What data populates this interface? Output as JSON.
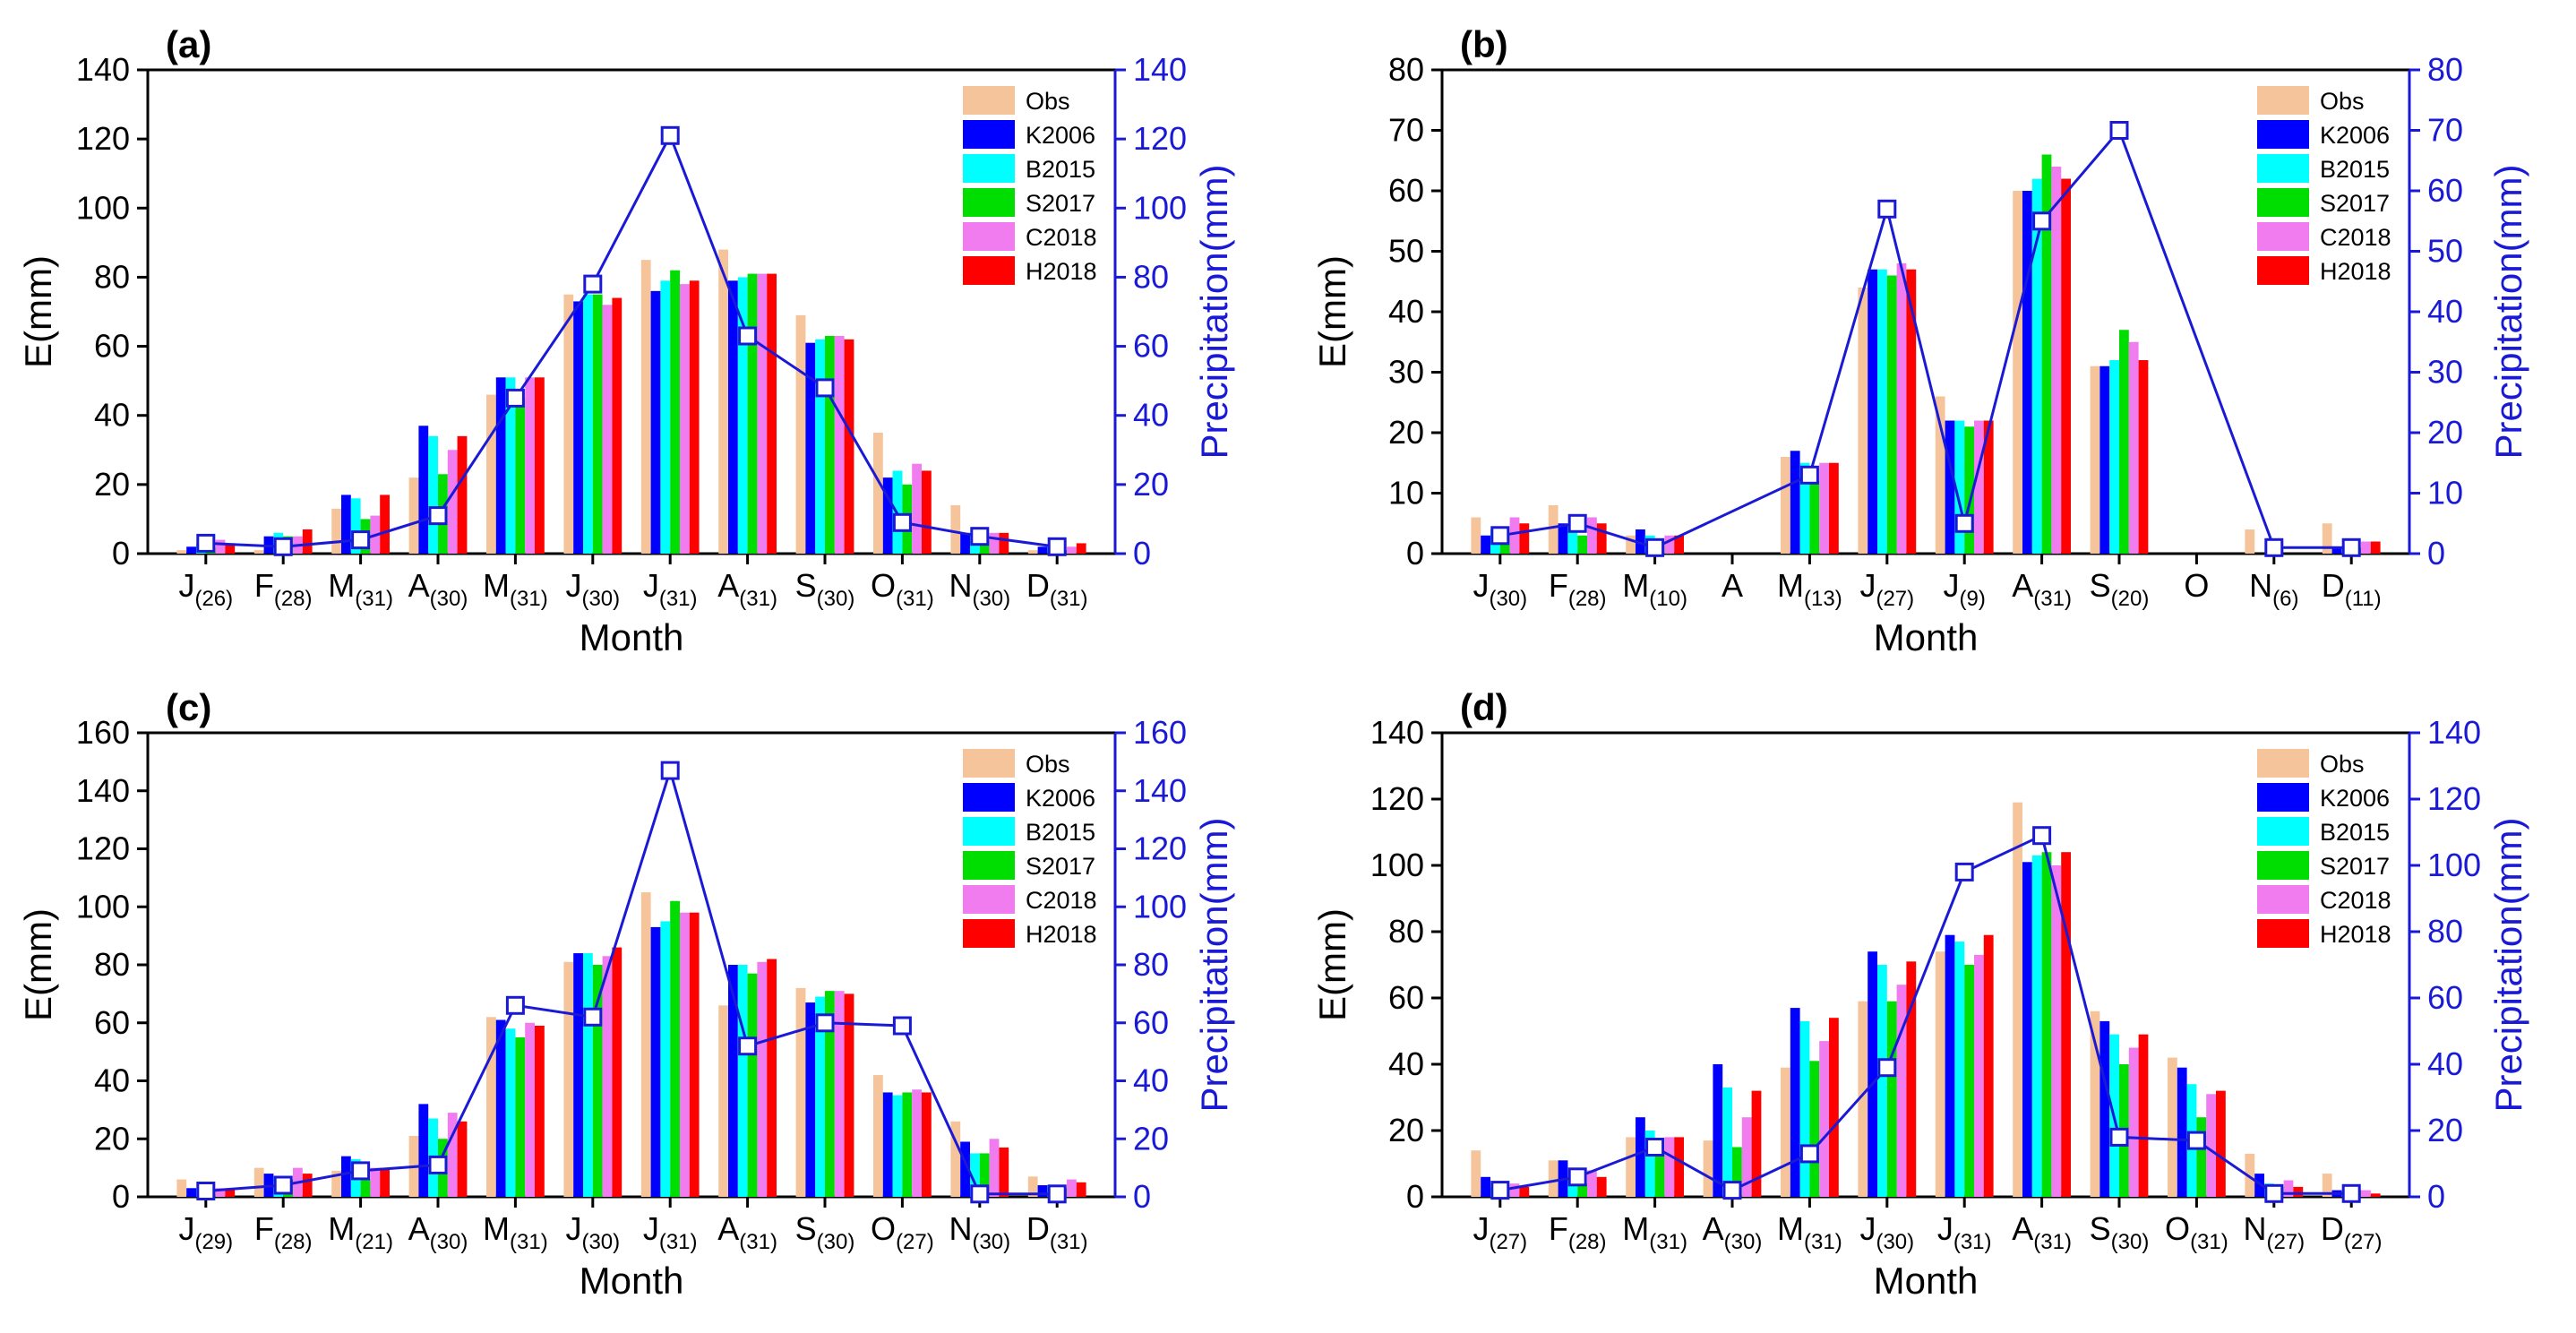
{
  "colors": {
    "Obs": "#f6c49b",
    "K2006": "#0000ff",
    "B2015": "#00ffff",
    "S2017": "#00dd00",
    "C2018": "#f07cf0",
    "H2018": "#ff0000",
    "precip": "#1a1ad6"
  },
  "chart_data": [
    {
      "type": "bar",
      "panel": "(a)",
      "xlabel": "Month",
      "ylabel": "E(mm)",
      "y2label": "Precipitation(mm)",
      "ylim": [
        0,
        140
      ],
      "yticks": [
        0,
        20,
        40,
        60,
        80,
        100,
        120,
        140
      ],
      "categories": [
        "J",
        "F",
        "M",
        "A",
        "M",
        "J",
        "J",
        "A",
        "S",
        "O",
        "N",
        "D"
      ],
      "subscripts": [
        "(26)",
        "(28)",
        "(31)",
        "(30)",
        "(31)",
        "(30)",
        "(31)",
        "(31)",
        "(30)",
        "(31)",
        "(30)",
        "(31)"
      ],
      "series": [
        {
          "name": "Obs",
          "values": [
            1,
            1,
            13,
            22,
            46,
            75,
            85,
            88,
            69,
            35,
            14,
            1
          ]
        },
        {
          "name": "K2006",
          "values": [
            2,
            5,
            17,
            37,
            51,
            73,
            76,
            79,
            61,
            22,
            6,
            2
          ]
        },
        {
          "name": "B2015",
          "values": [
            3,
            6,
            16,
            34,
            51,
            75,
            79,
            80,
            62,
            24,
            6,
            2
          ]
        },
        {
          "name": "S2017",
          "values": [
            2,
            5,
            10,
            23,
            45,
            75,
            82,
            81,
            63,
            20,
            4,
            1
          ]
        },
        {
          "name": "C2018",
          "values": [
            4,
            5,
            11,
            30,
            51,
            72,
            78,
            81,
            63,
            26,
            6,
            2
          ]
        },
        {
          "name": "H2018",
          "values": [
            3,
            7,
            17,
            34,
            51,
            74,
            79,
            81,
            62,
            24,
            6,
            3
          ]
        }
      ],
      "precipitation": [
        3,
        2,
        4,
        11,
        45,
        78,
        121,
        63,
        48,
        9,
        5,
        2
      ]
    },
    {
      "type": "bar",
      "panel": "(b)",
      "xlabel": "Month",
      "ylabel": "E(mm)",
      "y2label": "Precipitation(mm)",
      "ylim": [
        0,
        80
      ],
      "yticks": [
        0,
        10,
        20,
        30,
        40,
        50,
        60,
        70,
        80
      ],
      "categories": [
        "J",
        "F",
        "M",
        "A",
        "M",
        "J",
        "J",
        "A",
        "S",
        "O",
        "N",
        "D"
      ],
      "subscripts": [
        "(30)",
        "(28)",
        "(10)",
        "",
        "(13)",
        "(27)",
        "(9)",
        "(31)",
        "(20)",
        "",
        "(6)",
        "(11)"
      ],
      "series": [
        {
          "name": "Obs",
          "values": [
            6,
            8,
            3,
            null,
            16,
            44,
            26,
            60,
            31,
            null,
            4,
            5
          ]
        },
        {
          "name": "K2006",
          "values": [
            3,
            5,
            4,
            null,
            17,
            47,
            22,
            60,
            31,
            null,
            0,
            1
          ]
        },
        {
          "name": "B2015",
          "values": [
            4,
            5,
            3,
            null,
            15,
            47,
            22,
            62,
            32,
            null,
            0,
            1
          ]
        },
        {
          "name": "S2017",
          "values": [
            3,
            3,
            2,
            null,
            12,
            46,
            21,
            66,
            37,
            null,
            0,
            1
          ]
        },
        {
          "name": "C2018",
          "values": [
            6,
            6,
            3,
            null,
            15,
            48,
            22,
            64,
            35,
            null,
            0,
            2
          ]
        },
        {
          "name": "H2018",
          "values": [
            5,
            5,
            3,
            null,
            15,
            47,
            22,
            62,
            32,
            null,
            0,
            2
          ]
        }
      ],
      "precipitation": [
        3,
        5,
        1,
        null,
        13,
        57,
        5,
        55,
        70,
        null,
        1,
        1
      ]
    },
    {
      "type": "bar",
      "panel": "(c)",
      "xlabel": "Month",
      "ylabel": "E(mm)",
      "y2label": "Precipitation(mm)",
      "ylim": [
        0,
        160
      ],
      "yticks": [
        0,
        20,
        40,
        60,
        80,
        100,
        120,
        140,
        160
      ],
      "categories": [
        "J",
        "F",
        "M",
        "A",
        "M",
        "J",
        "J",
        "A",
        "S",
        "O",
        "N",
        "D"
      ],
      "subscripts": [
        "(29)",
        "(28)",
        "(21)",
        "(30)",
        "(31)",
        "(30)",
        "(31)",
        "(31)",
        "(30)",
        "(27)",
        "(30)",
        "(31)"
      ],
      "series": [
        {
          "name": "Obs",
          "values": [
            6,
            10,
            9,
            21,
            62,
            81,
            105,
            66,
            72,
            42,
            26,
            7
          ]
        },
        {
          "name": "K2006",
          "values": [
            3,
            8,
            14,
            32,
            61,
            84,
            93,
            80,
            67,
            36,
            19,
            4
          ]
        },
        {
          "name": "B2015",
          "values": [
            3,
            7,
            13,
            27,
            58,
            84,
            95,
            80,
            69,
            35,
            15,
            4
          ]
        },
        {
          "name": "S2017",
          "values": [
            2,
            6,
            6,
            20,
            55,
            80,
            102,
            77,
            71,
            36,
            15,
            3
          ]
        },
        {
          "name": "C2018",
          "values": [
            3,
            10,
            10,
            29,
            60,
            83,
            98,
            81,
            71,
            37,
            20,
            6
          ]
        },
        {
          "name": "H2018",
          "values": [
            3,
            8,
            10,
            26,
            59,
            86,
            98,
            82,
            70,
            36,
            17,
            5
          ]
        }
      ],
      "precipitation": [
        2,
        4,
        9,
        11,
        66,
        62,
        147,
        52,
        60,
        59,
        1,
        1
      ]
    },
    {
      "type": "bar",
      "panel": "(d)",
      "xlabel": "Month",
      "ylabel": "E(mm)",
      "y2label": "Precipitation(mm)",
      "ylim": [
        0,
        140
      ],
      "yticks": [
        0,
        20,
        40,
        60,
        80,
        100,
        120,
        140
      ],
      "categories": [
        "J",
        "F",
        "M",
        "A",
        "M",
        "J",
        "J",
        "A",
        "S",
        "O",
        "N",
        "D"
      ],
      "subscripts": [
        "(27)",
        "(28)",
        "(31)",
        "(30)",
        "(31)",
        "(30)",
        "(31)",
        "(31)",
        "(30)",
        "(31)",
        "(27)",
        "(27)"
      ],
      "series": [
        {
          "name": "Obs",
          "values": [
            14,
            11,
            18,
            17,
            39,
            59,
            74,
            119,
            56,
            42,
            13,
            7
          ]
        },
        {
          "name": "K2006",
          "values": [
            6,
            11,
            24,
            40,
            57,
            74,
            79,
            101,
            53,
            39,
            7,
            2
          ]
        },
        {
          "name": "B2015",
          "values": [
            3,
            7,
            20,
            33,
            53,
            70,
            77,
            103,
            49,
            34,
            4,
            2
          ]
        },
        {
          "name": "S2017",
          "values": [
            2,
            4,
            14,
            15,
            41,
            59,
            70,
            104,
            40,
            24,
            3,
            2
          ]
        },
        {
          "name": "C2018",
          "values": [
            4,
            8,
            18,
            24,
            47,
            64,
            73,
            100,
            45,
            31,
            5,
            2
          ]
        },
        {
          "name": "H2018",
          "values": [
            3,
            6,
            18,
            32,
            54,
            71,
            79,
            104,
            49,
            32,
            3,
            1
          ]
        }
      ],
      "precipitation": [
        2,
        6,
        15,
        2,
        13,
        39,
        98,
        109,
        18,
        17,
        1,
        1
      ]
    }
  ]
}
